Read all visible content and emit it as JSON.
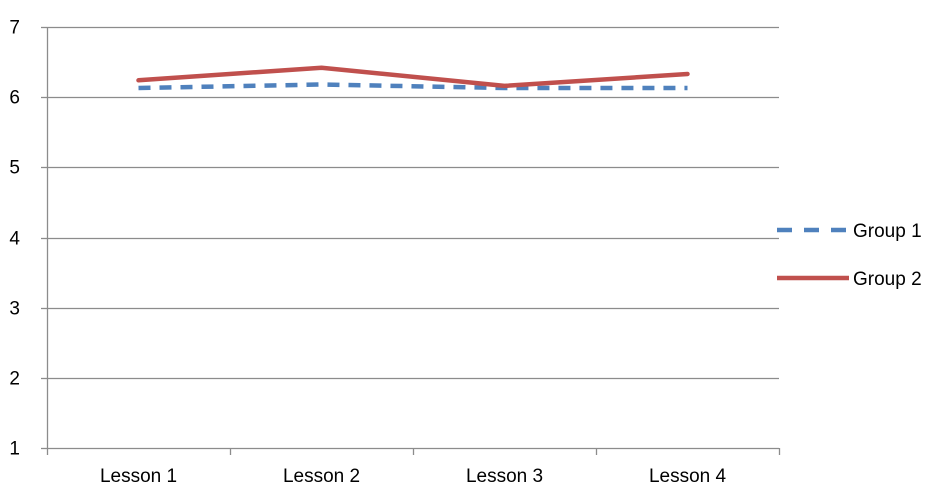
{
  "chart_data": {
    "type": "line",
    "categories": [
      "Lesson 1",
      "Lesson 2",
      "Lesson 3",
      "Lesson 4"
    ],
    "series": [
      {
        "name": "Group 1",
        "values": [
          6.13,
          6.18,
          6.13,
          6.13
        ],
        "color": "#4F81BD",
        "style": "dashed"
      },
      {
        "name": "Group 2",
        "values": [
          6.24,
          6.42,
          6.16,
          6.33
        ],
        "color": "#C0504D",
        "style": "solid"
      }
    ],
    "y_ticks": [
      "1",
      "2",
      "3",
      "4",
      "5",
      "6",
      "7"
    ],
    "ylim": [
      1,
      7
    ],
    "grid": true,
    "legend_position": "right",
    "title": "",
    "xlabel": "",
    "ylabel": ""
  }
}
